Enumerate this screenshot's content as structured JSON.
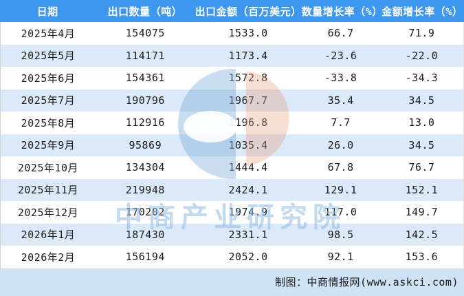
{
  "table": {
    "headers": [
      "日期",
      "出口数量（吨）",
      "出口金额（百万美元）",
      "数量增长率（%）",
      "金额增长率（%）"
    ],
    "rows": [
      [
        "2025年4月",
        "154075",
        "1533.0",
        "66.7",
        "71.9"
      ],
      [
        "2025年5月",
        "114171",
        "1173.4",
        "-23.6",
        "-22.0"
      ],
      [
        "2025年6月",
        "154361",
        "1572.8",
        "-33.8",
        "-34.3"
      ],
      [
        "2025年7月",
        "190796",
        "1967.7",
        "35.4",
        "34.5"
      ],
      [
        "2025年8月",
        "112916",
        "1196.8",
        "7.7",
        "13.0"
      ],
      [
        "2025年9月",
        "95869",
        "1035.4",
        "26.0",
        "34.5"
      ],
      [
        "2025年10月",
        "134304",
        "1444.4",
        "67.8",
        "76.7"
      ],
      [
        "2025年11月",
        "219948",
        "2424.1",
        "129.1",
        "152.1"
      ],
      [
        "2025年12月",
        "170202",
        "1974.9",
        "117.0",
        "149.7"
      ],
      [
        "2026年1月",
        "187430",
        "2331.1",
        "98.5",
        "142.5"
      ],
      [
        "2026年2月",
        "156194",
        "2052.0",
        "92.1",
        "153.6"
      ]
    ]
  },
  "footer": {
    "credit": "制图：中商情报网(www.askci.com)"
  },
  "watermark": {
    "text": "中商产业研究院",
    "logo_icon": "askci-circle-logo"
  },
  "colors": {
    "header_bg": "#3e97ee",
    "header_text": "#ffffff",
    "row_bg": "#ffffff",
    "row_alt_bg": "#dbe9f8",
    "footer_bg": "#cfe3f5",
    "body_text": "#1a1a1a",
    "watermark_blue": "#c8ddf0",
    "watermark_orange": "#f7ded3"
  },
  "chart_data": {
    "type": "table",
    "title": "",
    "columns": [
      "日期",
      "出口数量（吨）",
      "出口金额（百万美元）",
      "数量增长率（%）",
      "金额增长率（%）"
    ],
    "rows": [
      {
        "date": "2025年4月",
        "export_qty_tons": 154075,
        "export_amount_musd": 1533.0,
        "qty_growth_pct": 66.7,
        "amount_growth_pct": 71.9
      },
      {
        "date": "2025年5月",
        "export_qty_tons": 114171,
        "export_amount_musd": 1173.4,
        "qty_growth_pct": -23.6,
        "amount_growth_pct": -22.0
      },
      {
        "date": "2025年6月",
        "export_qty_tons": 154361,
        "export_amount_musd": 1572.8,
        "qty_growth_pct": -33.8,
        "amount_growth_pct": -34.3
      },
      {
        "date": "2025年7月",
        "export_qty_tons": 190796,
        "export_amount_musd": 1967.7,
        "qty_growth_pct": 35.4,
        "amount_growth_pct": 34.5
      },
      {
        "date": "2025年8月",
        "export_qty_tons": 112916,
        "export_amount_musd": 1196.8,
        "qty_growth_pct": 7.7,
        "amount_growth_pct": 13.0
      },
      {
        "date": "2025年9月",
        "export_qty_tons": 95869,
        "export_amount_musd": 1035.4,
        "qty_growth_pct": 26.0,
        "amount_growth_pct": 34.5
      },
      {
        "date": "2025年10月",
        "export_qty_tons": 134304,
        "export_amount_musd": 1444.4,
        "qty_growth_pct": 67.8,
        "amount_growth_pct": 76.7
      },
      {
        "date": "2025年11月",
        "export_qty_tons": 219948,
        "export_amount_musd": 2424.1,
        "qty_growth_pct": 129.1,
        "amount_growth_pct": 152.1
      },
      {
        "date": "2025年12月",
        "export_qty_tons": 170202,
        "export_amount_musd": 1974.9,
        "qty_growth_pct": 117.0,
        "amount_growth_pct": 149.7
      },
      {
        "date": "2026年1月",
        "export_qty_tons": 187430,
        "export_amount_musd": 2331.1,
        "qty_growth_pct": 98.5,
        "amount_growth_pct": 142.5
      },
      {
        "date": "2026年2月",
        "export_qty_tons": 156194,
        "export_amount_musd": 2052.0,
        "qty_growth_pct": 92.1,
        "amount_growth_pct": 153.6
      }
    ],
    "source_note": "制图：中商情报网(www.askci.com)",
    "layout_hints": {
      "striped_rows": true,
      "header_position": "top",
      "cell_alignment": "center"
    }
  }
}
